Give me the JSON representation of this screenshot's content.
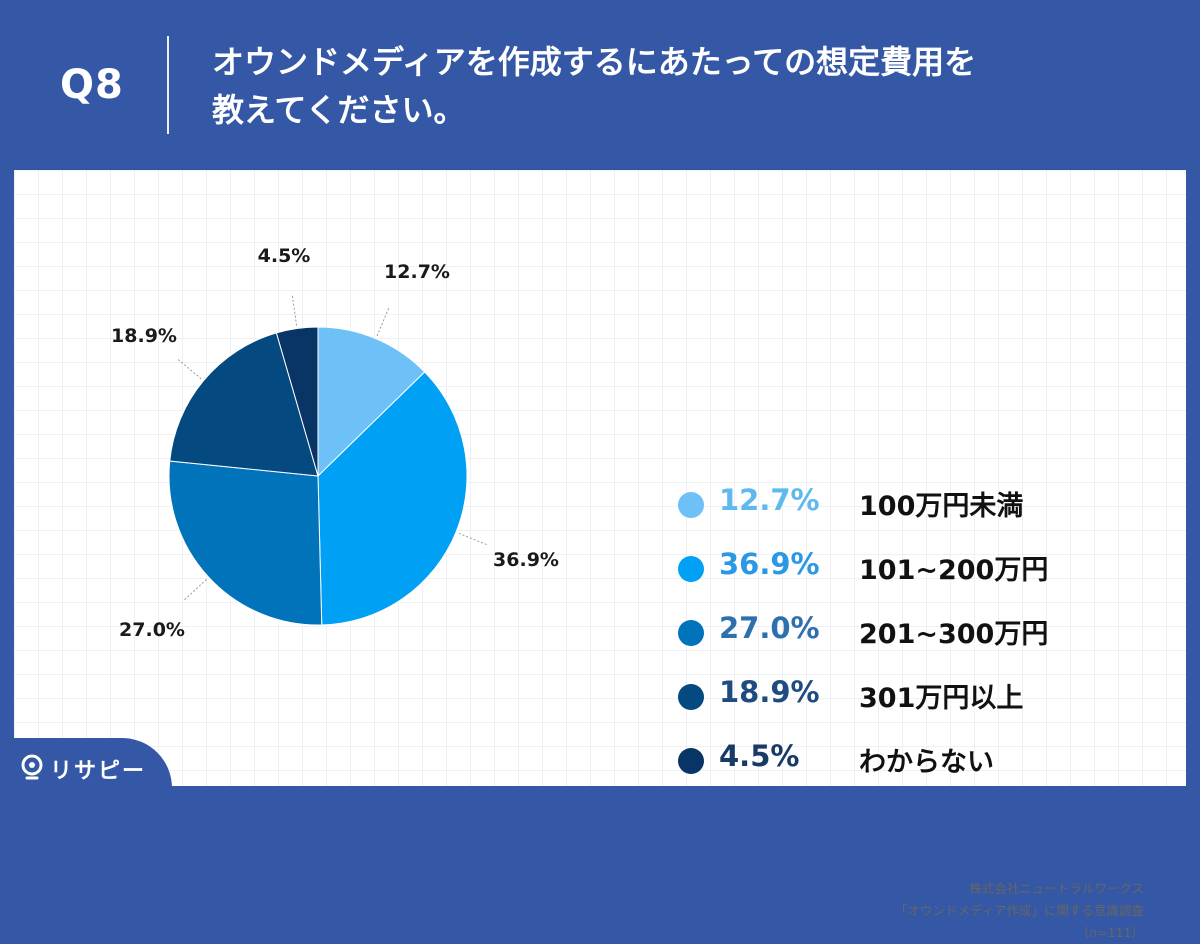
{
  "header": {
    "question_no": "Q8",
    "title_line1": "オウンドメディアを作成するにあたっての想定費用を",
    "title_line2": "教えてください。"
  },
  "chart_data": {
    "type": "pie",
    "categories": [
      "100万円未満",
      "101~200万円",
      "201~300万円",
      "301万円以上",
      "わからない"
    ],
    "values": [
      12.7,
      36.9,
      27.0,
      18.9,
      4.5
    ],
    "value_labels": [
      "12.7%",
      "36.9%",
      "27.0%",
      "18.9%",
      "4.5%"
    ],
    "colors": [
      "#6ec1f7",
      "#00a0f5",
      "#0073ba",
      "#04497f",
      "#083566"
    ],
    "legend_text_colors": [
      "#5fb9ee",
      "#2b98e6",
      "#2e6fad",
      "#1f4c80",
      "#173a66"
    ],
    "legend_position": "right",
    "start_angle": "12 o'clock",
    "direction": "clockwise"
  },
  "source": {
    "line1": "株式会社ニュートラルワークス",
    "line2": "「オウンドメディア作成」に関する意識調査",
    "line3": "（n=111）"
  },
  "brand": {
    "logo_text": "リサピー",
    "icon": "location-pin-icon"
  }
}
